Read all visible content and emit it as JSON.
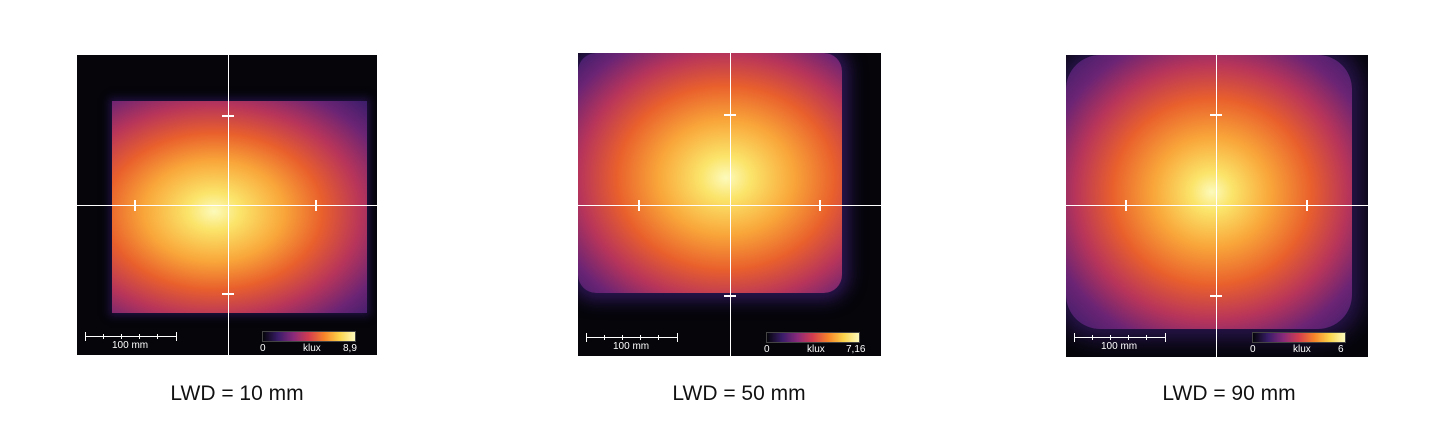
{
  "panels": [
    {
      "caption": "LWD = 10 mm",
      "scale_label": "100 mm",
      "colorbar": {
        "min_label": "0",
        "unit_label": "klux",
        "max_label": "8,9"
      }
    },
    {
      "caption": "LWD = 50 mm",
      "scale_label": "100 mm",
      "colorbar": {
        "min_label": "0",
        "unit_label": "klux",
        "max_label": "7,16"
      }
    },
    {
      "caption": "LWD = 90 mm",
      "scale_label": "100 mm",
      "colorbar": {
        "min_label": "0",
        "unit_label": "klux",
        "max_label": "6"
      }
    }
  ],
  "colors": {
    "background": "#05050a",
    "colormap": [
      "#05050a",
      "#3a1d6a",
      "#8a2a7a",
      "#d43d4f",
      "#f6842a",
      "#fbd34a",
      "#fcfabc"
    ]
  }
}
